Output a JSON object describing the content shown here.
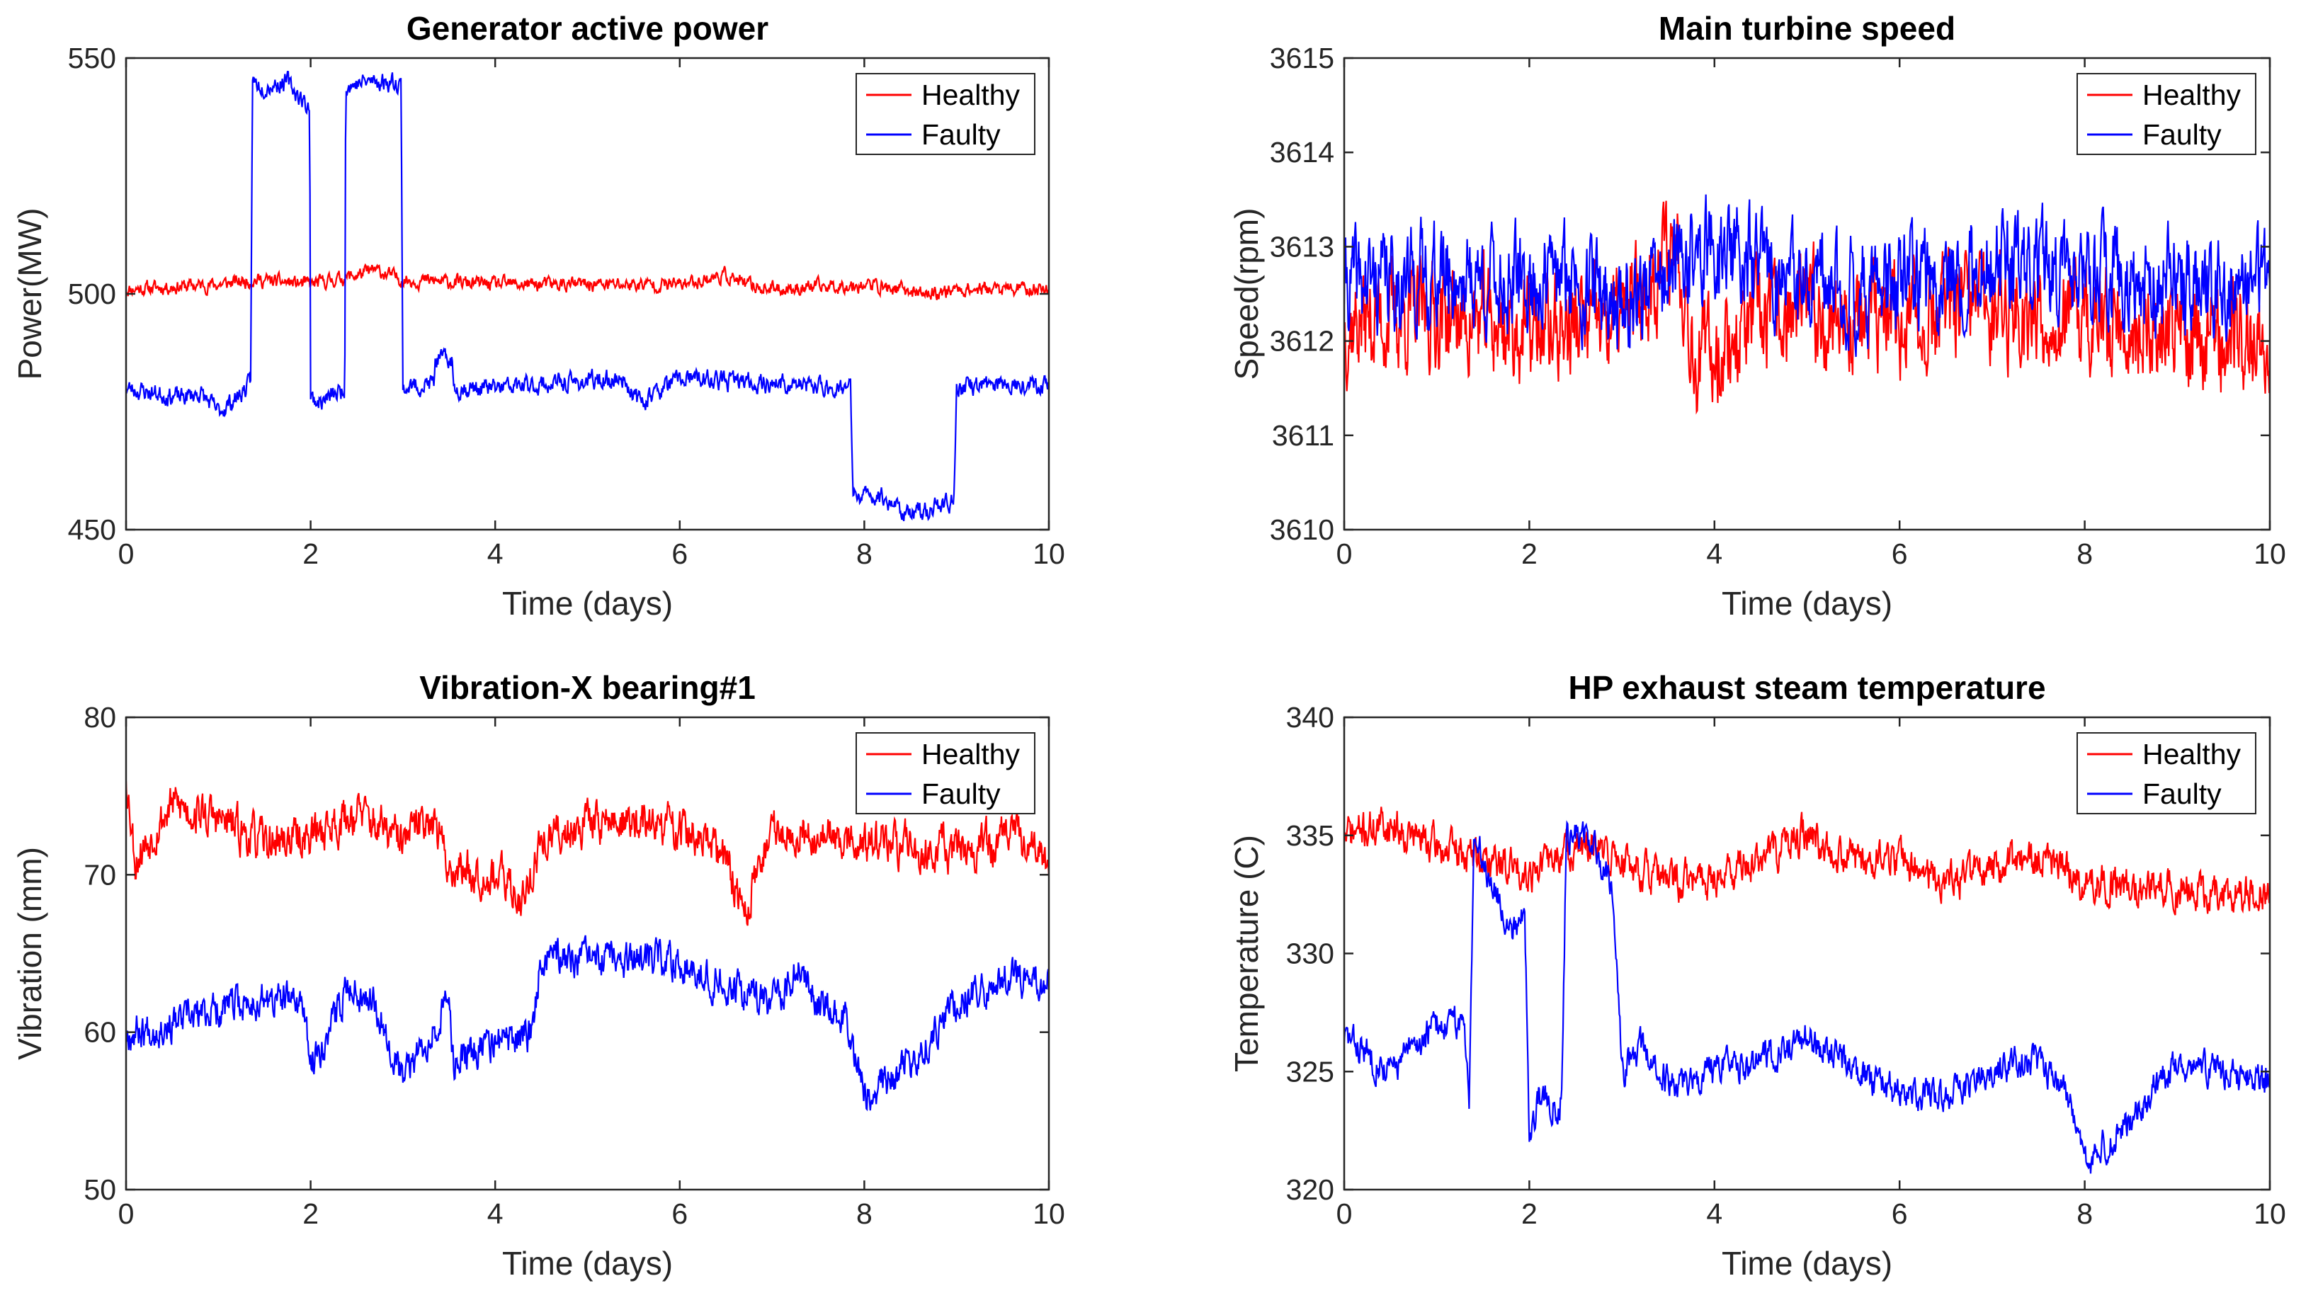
{
  "figure": {
    "healthy_color": "#ff0000",
    "faulty_color": "#0000ff",
    "axis_color": "#262626"
  },
  "chart_data": [
    {
      "type": "line",
      "title": "Generator active power",
      "xlabel": "Time (days)",
      "ylabel": "Power(MW)",
      "xlim": [
        0,
        10
      ],
      "ylim": [
        450,
        550
      ],
      "xticks": [
        "0",
        "2",
        "4",
        "6",
        "8",
        "10"
      ],
      "yticks": [
        "450",
        "500",
        "550"
      ],
      "legend": [
        "Healthy",
        "Faulty"
      ],
      "legend_position": "top-right",
      "series": [
        {
          "name": "Healthy",
          "color": "#ff0000",
          "noise": 1.2,
          "seed": 11,
          "points": [
            [
              0,
              501
            ],
            [
              1,
              502
            ],
            [
              1.4,
              503
            ],
            [
              2,
              502
            ],
            [
              2.5,
              504
            ],
            [
              2.7,
              505
            ],
            [
              3,
              503
            ],
            [
              4,
              502
            ],
            [
              5,
              502
            ],
            [
              6,
              502
            ],
            [
              6.5,
              504
            ],
            [
              6.7,
              502
            ],
            [
              7,
              501
            ],
            [
              8,
              502
            ],
            [
              8.7,
              500
            ],
            [
              9,
              501
            ],
            [
              10,
              501
            ]
          ]
        },
        {
          "name": "Faulty",
          "color": "#0000ff",
          "noise": 1.6,
          "seed": 23,
          "points": [
            [
              0,
              480
            ],
            [
              0.6,
              478
            ],
            [
              0.8,
              479
            ],
            [
              1,
              475
            ],
            [
              1.2,
              478
            ],
            [
              1.35,
              481
            ],
            [
              1.37,
              545
            ],
            [
              1.5,
              544
            ],
            [
              1.75,
              545
            ],
            [
              1.95,
              540
            ],
            [
              1.99,
              540
            ],
            [
              2.0,
              478
            ],
            [
              2.1,
              477
            ],
            [
              2.3,
              479
            ],
            [
              2.37,
              480
            ],
            [
              2.38,
              544
            ],
            [
              2.6,
              545
            ],
            [
              2.95,
              545
            ],
            [
              2.98,
              545
            ],
            [
              3.0,
              480
            ],
            [
              3.3,
              481
            ],
            [
              3.34,
              481
            ],
            [
              3.35,
              486
            ],
            [
              3.53,
              486
            ],
            [
              3.55,
              480
            ],
            [
              4,
              480
            ],
            [
              4.7,
              481
            ],
            [
              5.4,
              482
            ],
            [
              5.55,
              477
            ],
            [
              6,
              482
            ],
            [
              7,
              481
            ],
            [
              7.8,
              480
            ],
            [
              7.85,
              480
            ],
            [
              7.88,
              457
            ],
            [
              8.2,
              457
            ],
            [
              8.5,
              453
            ],
            [
              8.95,
              456
            ],
            [
              8.97,
              456
            ],
            [
              9.0,
              480
            ],
            [
              9.5,
              481
            ],
            [
              10,
              481
            ]
          ]
        }
      ]
    },
    {
      "type": "line",
      "title": "Main turbine speed",
      "xlabel": "Time (days)",
      "ylabel": "Speed(rpm)",
      "xlim": [
        0,
        10
      ],
      "ylim": [
        3610,
        3615
      ],
      "xticks": [
        "0",
        "2",
        "4",
        "6",
        "8",
        "10"
      ],
      "yticks": [
        "3610",
        "3611",
        "3612",
        "3613",
        "3614",
        "3615"
      ],
      "legend": [
        "Healthy",
        "Faulty"
      ],
      "legend_position": "top-right",
      "series": [
        {
          "name": "Healthy",
          "color": "#ff0000",
          "noise": 0.45,
          "seed": 37,
          "points": [
            [
              0,
              3612.2
            ],
            [
              1,
              3612.3
            ],
            [
              2,
              3612.1
            ],
            [
              3,
              3612.2
            ],
            [
              3.6,
              3613.1
            ],
            [
              3.8,
              3611.8
            ],
            [
              4.5,
              3612.2
            ],
            [
              5,
              3612.3
            ],
            [
              6,
              3612.2
            ],
            [
              7,
              3612.4
            ],
            [
              8,
              3612.2
            ],
            [
              9,
              3612.1
            ],
            [
              10,
              3612.0
            ]
          ]
        },
        {
          "name": "Faulty",
          "color": "#0000ff",
          "noise": 0.42,
          "seed": 41,
          "points": [
            [
              0,
              3612.6
            ],
            [
              1,
              3612.7
            ],
            [
              2,
              3612.6
            ],
            [
              2.5,
              3612.7
            ],
            [
              3,
              3612.4
            ],
            [
              3.5,
              3612.7
            ],
            [
              4,
              3613.0
            ],
            [
              4.5,
              3612.8
            ],
            [
              5,
              3612.5
            ],
            [
              6,
              3612.6
            ],
            [
              7,
              3612.8
            ],
            [
              8,
              3612.7
            ],
            [
              9,
              3612.6
            ],
            [
              10,
              3612.6
            ]
          ]
        }
      ]
    },
    {
      "type": "line",
      "title": "Vibration-X bearing#1",
      "xlabel": "Time (days)",
      "ylabel": "Vibration  (mm)",
      "xlim": [
        0,
        10
      ],
      "ylim": [
        50,
        80
      ],
      "xticks": [
        "0",
        "2",
        "4",
        "6",
        "8",
        "10"
      ],
      "yticks": [
        "50",
        "60",
        "70",
        "80"
      ],
      "legend": [
        "Healthy",
        "Faulty"
      ],
      "legend_position": "top-right",
      "series": [
        {
          "name": "Healthy",
          "color": "#ff0000",
          "noise": 1.1,
          "seed": 53,
          "points": [
            [
              0,
              76.5
            ],
            [
              0.1,
              71
            ],
            [
              0.5,
              74.5
            ],
            [
              1,
              73.5
            ],
            [
              1.5,
              72
            ],
            [
              2,
              72.5
            ],
            [
              2.5,
              74
            ],
            [
              3,
              72
            ],
            [
              3.3,
              74
            ],
            [
              3.5,
              70.5
            ],
            [
              4,
              70
            ],
            [
              4.3,
              68.5
            ],
            [
              4.5,
              72
            ],
            [
              5,
              73.5
            ],
            [
              6,
              73
            ],
            [
              6.5,
              71
            ],
            [
              6.7,
              67.5
            ],
            [
              7,
              73
            ],
            [
              8,
              72
            ],
            [
              9,
              71.5
            ],
            [
              9.8,
              72.5
            ],
            [
              10,
              70
            ]
          ]
        },
        {
          "name": "Faulty",
          "color": "#0000ff",
          "noise": 0.9,
          "seed": 67,
          "points": [
            [
              0,
              60
            ],
            [
              0.5,
              60.5
            ],
            [
              1,
              61.5
            ],
            [
              1.5,
              62
            ],
            [
              1.9,
              62
            ],
            [
              2.0,
              58
            ],
            [
              2.2,
              60
            ],
            [
              2.4,
              63
            ],
            [
              2.7,
              62
            ],
            [
              3.0,
              57
            ],
            [
              3.3,
              60
            ],
            [
              3.5,
              62
            ],
            [
              3.55,
              58
            ],
            [
              3.8,
              59
            ],
            [
              4.2,
              59.5
            ],
            [
              4.4,
              60
            ],
            [
              4.5,
              65
            ],
            [
              5,
              64.5
            ],
            [
              6,
              64.5
            ],
            [
              6.5,
              63
            ],
            [
              7,
              62
            ],
            [
              7.3,
              64
            ],
            [
              7.5,
              62
            ],
            [
              7.8,
              61
            ],
            [
              8,
              56
            ],
            [
              8.5,
              58
            ],
            [
              9,
              62
            ],
            [
              9.5,
              63.5
            ],
            [
              10,
              63
            ]
          ]
        }
      ]
    },
    {
      "type": "line",
      "title": "HP exhaust steam temperature",
      "xlabel": "Time (days)",
      "ylabel": "Temperature  (C)",
      "xlim": [
        0,
        10
      ],
      "ylim": [
        320,
        340
      ],
      "xticks": [
        "0",
        "2",
        "4",
        "6",
        "8",
        "10"
      ],
      "yticks": [
        "320",
        "325",
        "330",
        "335",
        "340"
      ],
      "legend": [
        "Healthy",
        "Faulty"
      ],
      "legend_position": "top-right",
      "series": [
        {
          "name": "Healthy",
          "color": "#ff0000",
          "noise": 0.65,
          "seed": 71,
          "points": [
            [
              0,
              335
            ],
            [
              0.5,
              335.5
            ],
            [
              1,
              334.5
            ],
            [
              1.5,
              334
            ],
            [
              2,
              333.5
            ],
            [
              2.5,
              334.5
            ],
            [
              3,
              334
            ],
            [
              3.5,
              333
            ],
            [
              4,
              333.2
            ],
            [
              4.5,
              334
            ],
            [
              5,
              335
            ],
            [
              5.5,
              334
            ],
            [
              6,
              334
            ],
            [
              6.5,
              333
            ],
            [
              7,
              333.5
            ],
            [
              7.5,
              334
            ],
            [
              8,
              333
            ],
            [
              9,
              332.8
            ],
            [
              10,
              332.5
            ]
          ]
        },
        {
          "name": "Faulty",
          "color": "#0000ff",
          "noise": 0.55,
          "seed": 83,
          "points": [
            [
              0,
              326.5
            ],
            [
              0.5,
              325
            ],
            [
              1,
              327
            ],
            [
              1.3,
              327
            ],
            [
              1.35,
              324
            ],
            [
              1.4,
              335
            ],
            [
              1.6,
              333
            ],
            [
              1.8,
              331
            ],
            [
              1.95,
              332
            ],
            [
              2.0,
              322
            ],
            [
              2.1,
              324
            ],
            [
              2.3,
              323.5
            ],
            [
              2.35,
              324
            ],
            [
              2.4,
              335
            ],
            [
              2.6,
              335
            ],
            [
              2.9,
              333
            ],
            [
              3.0,
              325
            ],
            [
              3.2,
              326
            ],
            [
              3.4,
              325
            ],
            [
              3.5,
              324.5
            ],
            [
              4,
              325
            ],
            [
              4.5,
              325.5
            ],
            [
              5,
              326.5
            ],
            [
              5.5,
              325
            ],
            [
              6,
              324
            ],
            [
              6.5,
              324
            ],
            [
              7,
              325
            ],
            [
              7.5,
              325.5
            ],
            [
              7.8,
              324
            ],
            [
              7.95,
              322
            ],
            [
              8,
              321
            ],
            [
              8.5,
              323
            ],
            [
              9,
              325.5
            ],
            [
              9.5,
              325
            ],
            [
              10,
              324.5
            ]
          ]
        }
      ]
    }
  ]
}
